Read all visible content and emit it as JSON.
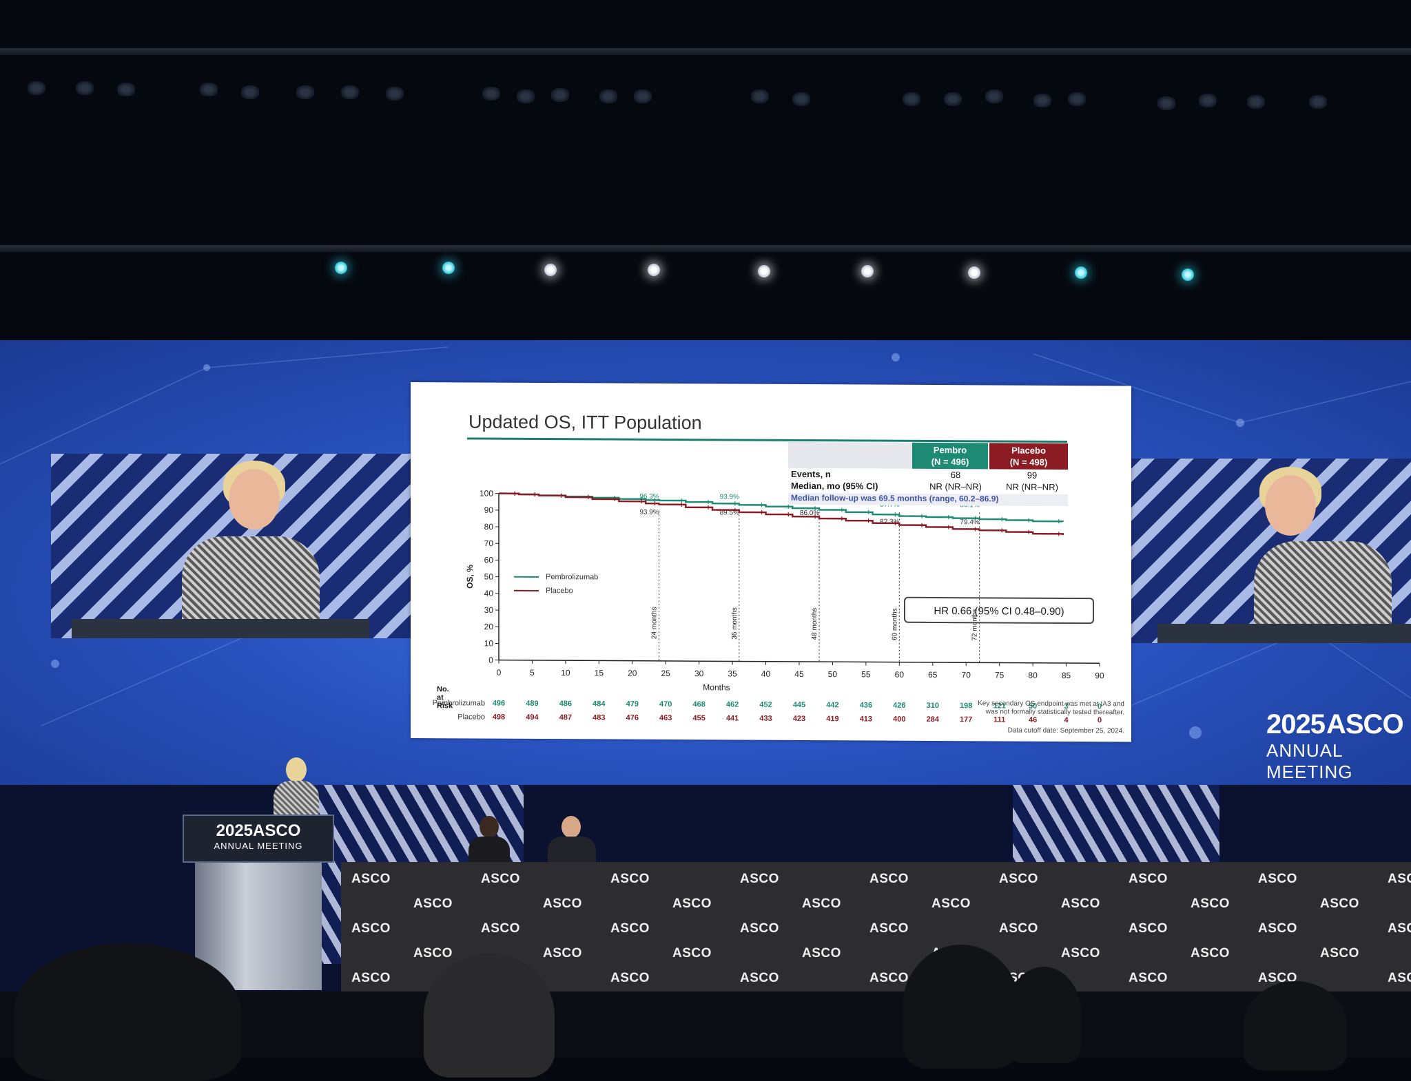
{
  "event": {
    "year": "2025",
    "brand": "ASCO",
    "meeting": "ANNUAL MEETING",
    "table_logo": "ASCO"
  },
  "slide": {
    "title": "Updated OS, ITT Population",
    "stats_table": {
      "headers": [
        {
          "line1": "Pembro",
          "line2": "(N = 496)",
          "color": "#1d8a73"
        },
        {
          "line1": "Placebo",
          "line2": "(N = 498)",
          "color": "#8c1c24"
        }
      ],
      "rows": [
        {
          "label": "Events, n",
          "pembro": "68",
          "placebo": "99"
        },
        {
          "label": "Median, mo (95% CI)",
          "pembro": "NR (NR–NR)",
          "placebo": "NR (NR–NR)"
        }
      ],
      "follow_up": "Median follow-up was 69.5 months (range, 60.2–86.9)"
    },
    "hazard_ratio": "HR 0.66 (95% CI 0.48–0.90)",
    "footnote_line1": "Key secondary OS endpoint was met at IA3 and",
    "footnote_line2": "was not formally statistically tested thereafter.",
    "data_cutoff": "Data cutoff date: September 25, 2024.",
    "risk_table": {
      "title": "No. at Risk",
      "rows": [
        {
          "label": "Pembrolizumab",
          "color": "#1d8a73",
          "values": [
            "496",
            "489",
            "486",
            "484",
            "479",
            "470",
            "468",
            "462",
            "452",
            "445",
            "442",
            "436",
            "426",
            "310",
            "198",
            "121",
            "50",
            "3",
            "0"
          ]
        },
        {
          "label": "Placebo",
          "color": "#8c1c24",
          "values": [
            "498",
            "494",
            "487",
            "483",
            "476",
            "463",
            "455",
            "441",
            "433",
            "423",
            "419",
            "413",
            "400",
            "284",
            "177",
            "111",
            "46",
            "4",
            "0"
          ]
        }
      ]
    }
  },
  "chart_data": {
    "type": "line",
    "title": "Updated OS, ITT Population",
    "xlabel": "Months",
    "ylabel": "OS, %",
    "xlim": [
      0,
      90
    ],
    "ylim": [
      0,
      100
    ],
    "xticks": [
      "0",
      "5",
      "10",
      "15",
      "20",
      "25",
      "30",
      "35",
      "40",
      "45",
      "50",
      "55",
      "60",
      "65",
      "70",
      "75",
      "80",
      "85",
      "90"
    ],
    "yticks": [
      "0",
      "10",
      "20",
      "30",
      "40",
      "50",
      "60",
      "70",
      "80",
      "90",
      "100"
    ],
    "series": [
      {
        "name": "Pembrolizumab",
        "color": "#1d8a73",
        "x": [
          0,
          3,
          6,
          10,
          14,
          18,
          22,
          24,
          28,
          32,
          36,
          40,
          44,
          48,
          52,
          56,
          60,
          64,
          68,
          72,
          76,
          80,
          84.5
        ],
        "y": [
          100,
          99.6,
          99.0,
          98.4,
          97.8,
          97.1,
          96.5,
          96.3,
          95.5,
          94.7,
          93.9,
          93.0,
          92.1,
          91.2,
          89.9,
          88.6,
          87.7,
          87.2,
          86.6,
          86.1,
          85.6,
          85.0,
          84.8
        ]
      },
      {
        "name": "Placebo",
        "color": "#8c1c24",
        "x": [
          0,
          3,
          6,
          10,
          14,
          18,
          22,
          24,
          28,
          32,
          36,
          40,
          44,
          48,
          52,
          56,
          60,
          64,
          68,
          72,
          76,
          80,
          84.5
        ],
        "y": [
          100,
          99.5,
          98.9,
          98.0,
          96.9,
          95.7,
          94.5,
          93.9,
          92.3,
          90.8,
          89.5,
          88.3,
          87.1,
          86.0,
          84.8,
          83.4,
          82.3,
          81.2,
          80.1,
          79.4,
          78.5,
          77.5,
          76.8
        ]
      }
    ],
    "landmarks": [
      {
        "month": 24,
        "label": "24 months",
        "pembro": "96.3%",
        "placebo": "93.9%"
      },
      {
        "month": 36,
        "label": "36 months",
        "pembro": "93.9%",
        "placebo": "89.5%"
      },
      {
        "month": 48,
        "label": "48 months",
        "pembro": "91.2%",
        "placebo": "86.0%"
      },
      {
        "month": 60,
        "label": "60 months",
        "pembro": "87.7%",
        "placebo": "82.3%"
      },
      {
        "month": 72,
        "label": "72 months",
        "pembro": "86.1%",
        "placebo": "79.4%"
      }
    ],
    "legend_placement": "center-left"
  }
}
